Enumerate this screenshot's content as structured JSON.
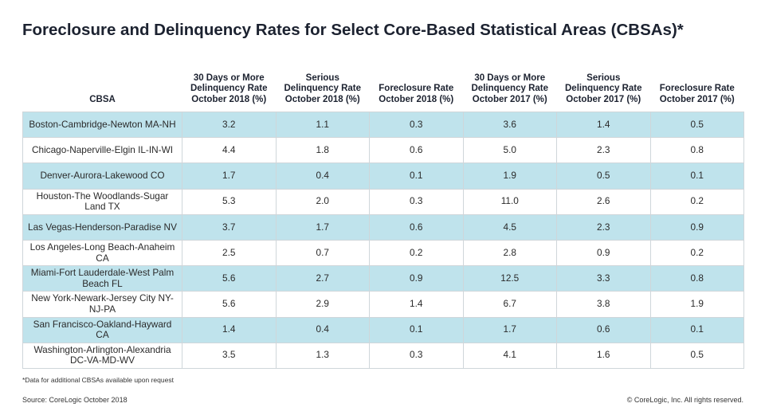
{
  "title": "Foreclosure and Delinquency Rates for Select Core-Based Statistical Areas (CBSAs)*",
  "columns": [
    "CBSA",
    "30 Days or More Delinquency Rate October 2018 (%)",
    "Serious Delinquency Rate October 2018 (%)",
    "Foreclosure Rate October 2018 (%)",
    "30 Days or More Delinquency Rate October 2017 (%)",
    "Serious Delinquency Rate October 2017 (%)",
    "Foreclosure Rate October 2017 (%)"
  ],
  "rows": [
    [
      "Boston-Cambridge-Newton MA-NH",
      "3.2",
      "1.1",
      "0.3",
      "3.6",
      "1.4",
      "0.5"
    ],
    [
      "Chicago-Naperville-Elgin IL-IN-WI",
      "4.4",
      "1.8",
      "0.6",
      "5.0",
      "2.3",
      "0.8"
    ],
    [
      "Denver-Aurora-Lakewood CO",
      "1.7",
      "0.4",
      "0.1",
      "1.9",
      "0.5",
      "0.1"
    ],
    [
      "Houston-The Woodlands-Sugar Land TX",
      "5.3",
      "2.0",
      "0.3",
      "11.0",
      "2.6",
      "0.2"
    ],
    [
      "Las Vegas-Henderson-Paradise NV",
      "3.7",
      "1.7",
      "0.6",
      "4.5",
      "2.3",
      "0.9"
    ],
    [
      "Los Angeles-Long Beach-Anaheim CA",
      "2.5",
      "0.7",
      "0.2",
      "2.8",
      "0.9",
      "0.2"
    ],
    [
      "Miami-Fort Lauderdale-West Palm Beach FL",
      "5.6",
      "2.7",
      "0.9",
      "12.5",
      "3.3",
      "0.8"
    ],
    [
      "New York-Newark-Jersey City NY-NJ-PA",
      "5.6",
      "2.9",
      "1.4",
      "6.7",
      "3.8",
      "1.9"
    ],
    [
      "San Francisco-Oakland-Hayward CA",
      "1.4",
      "0.4",
      "0.1",
      "1.7",
      "0.6",
      "0.1"
    ],
    [
      "Washington-Arlington-Alexandria DC-VA-MD-WV",
      "3.5",
      "1.3",
      "0.3",
      "4.1",
      "1.6",
      "0.5"
    ]
  ],
  "footnote": "*Data for additional CBSAs available upon request",
  "source": "Source: CoreLogic October 2018",
  "copyright": "© CoreLogic, Inc. All rights reserved."
}
